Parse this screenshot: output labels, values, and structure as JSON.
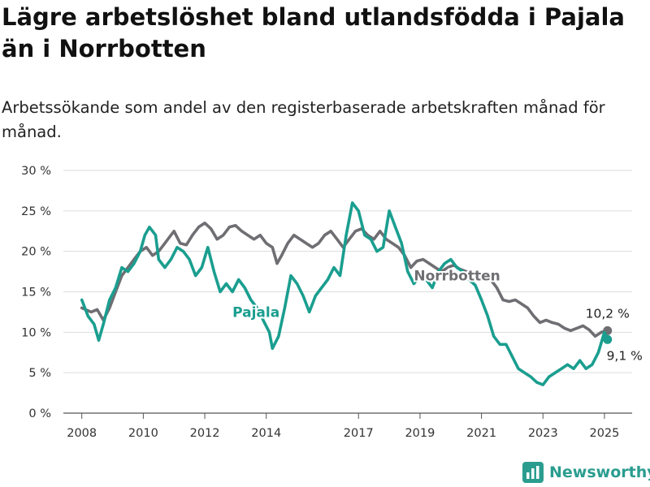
{
  "header": {
    "title": "Lägre arbetslöshet bland utlandsfödda i Pajala än i Norrbotten",
    "subtitle": "Arbetssökande som andel av den registerbaserade arbetskraften månad för månad."
  },
  "brand": {
    "name": "Newsworthy",
    "color": "#2a9d8f",
    "icon": "bar-chart-logo-icon"
  },
  "chart_data": {
    "type": "line",
    "title": "Lägre arbetslöshet bland utlandsfödda i Pajala än i Norrbotten",
    "xlabel": "",
    "ylabel": "",
    "xlim": [
      2007.4,
      2025.9
    ],
    "ylim": [
      0,
      30
    ],
    "yticks": [
      0,
      5,
      10,
      15,
      20,
      25,
      30
    ],
    "ytick_labels": [
      "0 %",
      "5 %",
      "10 %",
      "15 %",
      "20 %",
      "25 %",
      "30 %"
    ],
    "xticks": [
      2008,
      2010,
      2012,
      2014,
      2017,
      2019,
      2021,
      2023,
      2025
    ],
    "xtick_labels": [
      "2008",
      "2010",
      "2012",
      "2014",
      "2017",
      "2019",
      "2021",
      "2023",
      "2025"
    ],
    "grid": true,
    "legend": "inline labels",
    "series": [
      {
        "name": "Norrbotten",
        "color": "#6e6e73",
        "end_label": "10,2 %",
        "x": [
          2008.0,
          2008.3,
          2008.5,
          2008.7,
          2008.9,
          2009.1,
          2009.3,
          2009.5,
          2009.7,
          2009.9,
          2010.1,
          2010.3,
          2010.5,
          2010.7,
          2010.9,
          2011.0,
          2011.2,
          2011.4,
          2011.6,
          2011.8,
          2012.0,
          2012.2,
          2012.4,
          2012.6,
          2012.8,
          2013.0,
          2013.2,
          2013.4,
          2013.6,
          2013.8,
          2014.0,
          2014.2,
          2014.35,
          2014.5,
          2014.7,
          2014.9,
          2015.1,
          2015.3,
          2015.5,
          2015.7,
          2015.9,
          2016.1,
          2016.3,
          2016.5,
          2016.7,
          2016.9,
          2017.1,
          2017.3,
          2017.5,
          2017.7,
          2017.9,
          2018.1,
          2018.3,
          2018.5,
          2018.7,
          2018.9,
          2019.1,
          2019.3,
          2019.5,
          2019.7,
          2019.9,
          2020.1,
          2020.3,
          2020.5,
          2020.7,
          2020.9,
          2021.1,
          2021.3,
          2021.5,
          2021.7,
          2021.9,
          2022.1,
          2022.3,
          2022.5,
          2022.7,
          2022.9,
          2023.1,
          2023.3,
          2023.5,
          2023.7,
          2023.9,
          2024.1,
          2024.3,
          2024.5,
          2024.7,
          2024.9,
          2025.1
        ],
        "values": [
          13,
          12.5,
          12.8,
          11.5,
          13,
          15,
          17,
          18,
          19,
          20,
          20.5,
          19.5,
          20,
          21,
          22,
          22.5,
          21,
          20.8,
          22,
          23,
          23.5,
          22.8,
          21.5,
          22,
          23,
          23.2,
          22.5,
          22,
          21.5,
          22,
          21,
          20.5,
          18.5,
          19.5,
          21,
          22,
          21.5,
          21,
          20.5,
          21,
          22,
          22.5,
          21.5,
          20.5,
          21.5,
          22.5,
          22.8,
          22,
          21.5,
          22.5,
          21.5,
          21,
          20.5,
          19.5,
          18,
          18.8,
          19,
          18.5,
          18,
          17.5,
          18,
          18.3,
          17.8,
          17.5,
          17.2,
          17,
          16.8,
          16.5,
          15.5,
          14,
          13.8,
          14,
          13.5,
          13,
          12,
          11.2,
          11.5,
          11.2,
          11,
          10.5,
          10.2,
          10.5,
          10.8,
          10.3,
          9.5,
          10,
          10.2
        ]
      },
      {
        "name": "Pajala",
        "color": "#1a9e8f",
        "end_label": "9,1 %",
        "x": [
          2008.0,
          2008.2,
          2008.4,
          2008.55,
          2008.7,
          2008.9,
          2009.1,
          2009.3,
          2009.5,
          2009.7,
          2009.9,
          2010.05,
          2010.2,
          2010.4,
          2010.5,
          2010.7,
          2010.9,
          2011.1,
          2011.3,
          2011.5,
          2011.7,
          2011.9,
          2012.1,
          2012.3,
          2012.5,
          2012.7,
          2012.9,
          2013.1,
          2013.3,
          2013.5,
          2013.7,
          2013.9,
          2014.1,
          2014.2,
          2014.4,
          2014.6,
          2014.8,
          2015.0,
          2015.2,
          2015.4,
          2015.6,
          2015.8,
          2016.0,
          2016.2,
          2016.4,
          2016.6,
          2016.8,
          2017.0,
          2017.2,
          2017.4,
          2017.6,
          2017.8,
          2018.0,
          2018.2,
          2018.4,
          2018.6,
          2018.8,
          2019.0,
          2019.2,
          2019.4,
          2019.6,
          2019.8,
          2020.0,
          2020.2,
          2020.4,
          2020.6,
          2020.8,
          2021.0,
          2021.2,
          2021.4,
          2021.6,
          2021.8,
          2022.0,
          2022.2,
          2022.4,
          2022.6,
          2022.8,
          2023.0,
          2023.2,
          2023.4,
          2023.6,
          2023.8,
          2024.0,
          2024.2,
          2024.4,
          2024.6,
          2024.8,
          2025.0,
          2025.1
        ],
        "values": [
          14,
          12,
          11,
          9,
          11,
          14,
          15.5,
          18,
          17.5,
          18.5,
          20,
          22,
          23,
          22,
          19,
          18,
          19,
          20.5,
          20,
          19,
          17,
          18,
          20.5,
          17.5,
          15,
          16,
          15,
          16.5,
          15.5,
          14,
          13,
          11.5,
          10,
          8,
          9.5,
          13,
          17,
          16,
          14.5,
          12.5,
          14.5,
          15.5,
          16.5,
          18,
          17,
          22,
          26,
          25,
          22,
          21.5,
          20,
          20.5,
          25,
          23,
          21,
          17.5,
          16,
          17,
          16.5,
          15.5,
          17.5,
          18.5,
          19,
          18,
          17.5,
          16.5,
          15.8,
          14,
          12,
          9.5,
          8.5,
          8.5,
          7,
          5.5,
          5,
          4.5,
          3.8,
          3.5,
          4.5,
          5,
          5.5,
          6,
          5.5,
          6.5,
          5.5,
          6,
          7.5,
          10,
          9.1
        ]
      }
    ],
    "annotations": [
      {
        "text": "Norrbotten",
        "series": "Norrbotten",
        "placement": "inline label above line around 2019-2021",
        "color": "#6e6e73"
      },
      {
        "text": "Pajala",
        "series": "Pajala",
        "placement": "inline label left of line around 2013",
        "color": "#1a9e8f"
      },
      {
        "text": "10,2 %",
        "series": "Norrbotten",
        "placement": "end-of-line value label above point"
      },
      {
        "text": "9,1 %",
        "series": "Pajala",
        "placement": "end-of-line value label below-right of point"
      }
    ]
  }
}
